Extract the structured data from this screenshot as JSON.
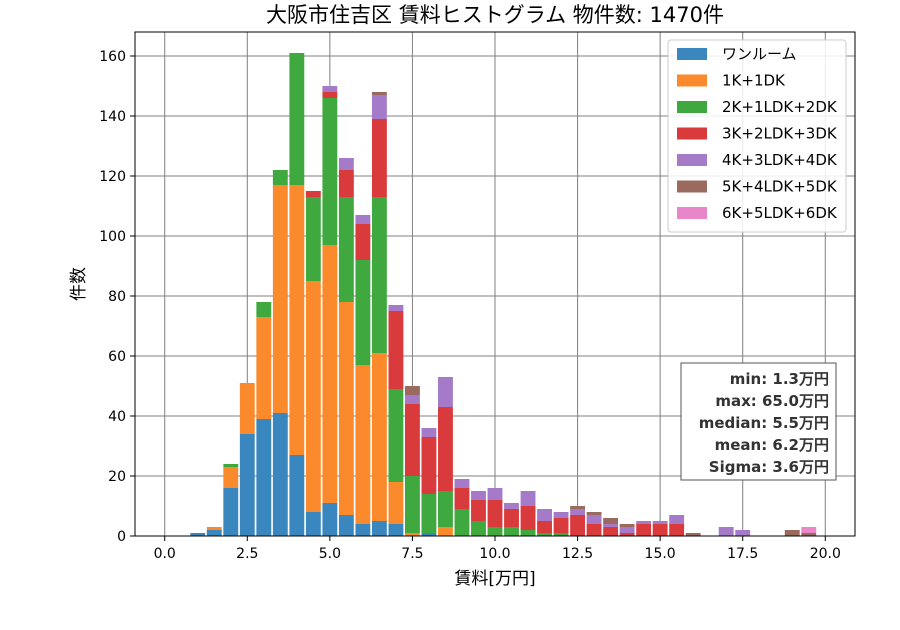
{
  "chart_data": {
    "type": "bar",
    "stacked": true,
    "title": "大阪市住吉区 賃料ヒストグラム 物件数: 1470件",
    "xlabel": "賃料[万円]",
    "ylabel": "件数",
    "xlim": [
      -0.9,
      20.9
    ],
    "ylim": [
      0,
      168
    ],
    "xticks": [
      0.0,
      2.5,
      5.0,
      7.5,
      10.0,
      12.5,
      15.0,
      17.5,
      20.0
    ],
    "xtick_labels": [
      "0.0",
      "2.5",
      "5.0",
      "7.5",
      "10.0",
      "12.5",
      "15.0",
      "17.5",
      "20.0"
    ],
    "yticks": [
      0,
      20,
      40,
      60,
      80,
      100,
      120,
      140,
      160
    ],
    "ytick_labels": [
      "0",
      "20",
      "40",
      "60",
      "80",
      "100",
      "120",
      "140",
      "160"
    ],
    "grid": true,
    "legend_position": "top-right",
    "bin_width": 0.5,
    "bin_centers": [
      1.0,
      1.5,
      2.0,
      2.5,
      3.0,
      3.5,
      4.0,
      4.5,
      5.0,
      5.5,
      6.0,
      6.5,
      7.0,
      7.5,
      8.0,
      8.5,
      9.0,
      9.5,
      10.0,
      10.5,
      11.0,
      11.5,
      12.0,
      12.5,
      13.0,
      13.5,
      14.0,
      14.5,
      15.0,
      15.5,
      16.0,
      16.5,
      17.0,
      17.5,
      18.0,
      18.5,
      19.0,
      19.5
    ],
    "series": [
      {
        "name": "ワンルーム",
        "color": "#3a87c0",
        "values": [
          1,
          2,
          16,
          34,
          39,
          41,
          27,
          8,
          11,
          7,
          4,
          5,
          4,
          0,
          1,
          0,
          0,
          0,
          0,
          0,
          0,
          0,
          0,
          0,
          0,
          0,
          0,
          0,
          0,
          0,
          0,
          0,
          0,
          0,
          0,
          0,
          0,
          0
        ]
      },
      {
        "name": "1K+1DK",
        "color": "#fb8a2c",
        "values": [
          0,
          1,
          7,
          17,
          34,
          76,
          90,
          77,
          86,
          71,
          53,
          56,
          14,
          1,
          0,
          3,
          0,
          0,
          0,
          0,
          0,
          0,
          0,
          0,
          0,
          0,
          0,
          0,
          0,
          0,
          0,
          0,
          0,
          0,
          0,
          0,
          0,
          0
        ]
      },
      {
        "name": "2K+1LDK+2DK",
        "color": "#3fa83f",
        "values": [
          0,
          0,
          1,
          0,
          5,
          5,
          44,
          28,
          49,
          35,
          35,
          52,
          31,
          19,
          13,
          12,
          9,
          5,
          3,
          3,
          2,
          1,
          1,
          0,
          0,
          0,
          0,
          0,
          0,
          0,
          0,
          0,
          0,
          0,
          0,
          0,
          0,
          0
        ]
      },
      {
        "name": "3K+2LDK+3DK",
        "color": "#d93a3b",
        "values": [
          0,
          0,
          0,
          0,
          0,
          0,
          0,
          2,
          2,
          9,
          12,
          26,
          26,
          24,
          19,
          28,
          7,
          7,
          9,
          6,
          8,
          4,
          5,
          7,
          4,
          3,
          1,
          4,
          4,
          4,
          0,
          0,
          0,
          0,
          0,
          0,
          0,
          0
        ]
      },
      {
        "name": "4K+3LDK+4DK",
        "color": "#a57ac8",
        "values": [
          0,
          0,
          0,
          0,
          0,
          0,
          0,
          0,
          2,
          4,
          3,
          8,
          2,
          3,
          3,
          10,
          3,
          3,
          4,
          2,
          5,
          4,
          2,
          2,
          3,
          1,
          2,
          1,
          1,
          3,
          0,
          0,
          3,
          2,
          0,
          0,
          0,
          0
        ]
      },
      {
        "name": "5K+4LDK+5DK",
        "color": "#9b6a5e",
        "values": [
          0,
          0,
          0,
          0,
          0,
          0,
          0,
          0,
          0,
          0,
          0,
          1,
          0,
          3,
          0,
          0,
          0,
          0,
          0,
          0,
          0,
          0,
          0,
          1,
          1,
          2,
          1,
          0,
          0,
          0,
          1,
          0,
          0,
          0,
          0,
          0,
          2,
          1
        ]
      },
      {
        "name": "6K+5LDK+6DK",
        "color": "#e985c9",
        "values": [
          0,
          0,
          0,
          0,
          0,
          0,
          0,
          0,
          0,
          0,
          0,
          0,
          0,
          0,
          0,
          0,
          0,
          0,
          0,
          0,
          0,
          0,
          0,
          0,
          0,
          0,
          0,
          0,
          0,
          0,
          0,
          0,
          0,
          0,
          0,
          0,
          0,
          2
        ]
      }
    ],
    "stats": [
      "min: 1.3万円",
      "max: 65.0万円",
      "median: 5.5万円",
      "mean: 6.2万円",
      "Sigma: 3.6万円"
    ]
  }
}
